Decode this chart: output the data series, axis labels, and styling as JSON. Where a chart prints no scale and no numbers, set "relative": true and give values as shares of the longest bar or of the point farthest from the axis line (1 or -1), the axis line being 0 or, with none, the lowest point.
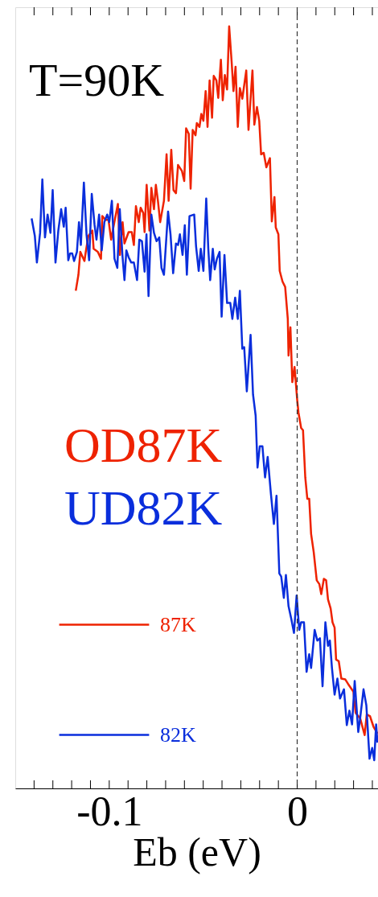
{
  "chart_data": {
    "type": "line",
    "relative": true,
    "xlabel": "Eb (eV)",
    "annotations": [
      "T=90K",
      "OD87K",
      "UD82K"
    ],
    "xlim": [
      -0.15,
      0.043
    ],
    "xticks": [
      {
        "value": -0.14,
        "label": null
      },
      {
        "value": -0.13,
        "label": null
      },
      {
        "value": -0.12,
        "label": null
      },
      {
        "value": -0.11,
        "label": null
      },
      {
        "value": -0.1,
        "label": "-0.1"
      },
      {
        "value": -0.09,
        "label": null
      },
      {
        "value": -0.08,
        "label": null
      },
      {
        "value": -0.07,
        "label": null
      },
      {
        "value": -0.06,
        "label": null
      },
      {
        "value": -0.05,
        "label": null
      },
      {
        "value": -0.04,
        "label": null
      },
      {
        "value": -0.03,
        "label": null
      },
      {
        "value": -0.02,
        "label": null
      },
      {
        "value": -0.01,
        "label": null
      },
      0,
      {
        "value": 0.01,
        "label": null
      },
      {
        "value": 0.02,
        "label": null
      },
      {
        "value": 0.03,
        "label": null
      },
      {
        "value": 0.04,
        "label": null
      }
    ],
    "grid": false,
    "legend": "bottom left",
    "marker": "none",
    "line_style": "solid",
    "tick_labels": "x",
    "ref_lines": [
      {
        "axis": "x",
        "value": 0,
        "label": null,
        "color": "#333333",
        "line_style": "dashed"
      }
    ],
    "series": [
      {
        "name": "87K",
        "color": "#ee2200",
        "x": [
          -0.1178,
          -0.1164,
          -0.1154,
          -0.1132,
          -0.1125,
          -0.1111,
          -0.109,
          -0.1083,
          -0.1061,
          -0.1044,
          -0.1037,
          -0.1019,
          -0.1004,
          -0.099,
          -0.0976,
          -0.0954,
          -0.0943,
          -0.0929,
          -0.0919,
          -0.0897,
          -0.088,
          -0.0869,
          -0.0858,
          -0.0843,
          -0.0833,
          -0.0819,
          -0.0812,
          -0.0801,
          -0.0786,
          -0.0776,
          -0.0762,
          -0.0752,
          -0.0741,
          -0.0729,
          -0.0709,
          -0.0695,
          -0.0684,
          -0.067,
          -0.0658,
          -0.0645,
          -0.0634,
          -0.0613,
          -0.0601,
          -0.0591,
          -0.0577,
          -0.0567,
          -0.0556,
          -0.0541,
          -0.0534,
          -0.052,
          -0.051,
          -0.0499,
          -0.0487,
          -0.0477,
          -0.0466,
          -0.0453,
          -0.0444,
          -0.043,
          -0.042,
          -0.0406,
          -0.0396,
          -0.0385,
          -0.0373,
          -0.0362,
          -0.0349,
          -0.0339,
          -0.0328,
          -0.0316,
          -0.0305,
          -0.0292,
          -0.0271,
          -0.0259,
          -0.0238,
          -0.0228,
          -0.0214,
          -0.0202,
          -0.0192,
          -0.0178,
          -0.0164,
          -0.0145,
          -0.0135,
          -0.0121,
          -0.0114,
          -0.01,
          -0.0093,
          -0.0078,
          -0.0064,
          -0.005,
          -0.0046,
          -0.0036,
          -0.0026,
          -0.0014,
          0.0,
          0.0007,
          0.0021,
          0.0031,
          0.0043,
          0.0054,
          0.0064,
          0.0074,
          0.0088,
          0.0104,
          0.0118,
          0.0128,
          0.0142,
          0.0154,
          0.0164,
          0.0178,
          0.0188,
          0.0199,
          0.0207,
          0.0221,
          0.0235,
          0.0256,
          0.0271,
          0.0299,
          0.0311,
          0.0335,
          0.0359,
          0.037,
          0.0387,
          0.0406,
          0.0427
        ],
        "values": [
          0.653,
          0.674,
          0.704,
          0.692,
          0.704,
          0.725,
          0.732,
          0.708,
          0.704,
          0.695,
          0.751,
          0.746,
          0.746,
          0.72,
          0.739,
          0.767,
          0.7,
          0.743,
          0.715,
          0.73,
          0.73,
          0.713,
          0.764,
          0.743,
          0.762,
          0.755,
          0.73,
          0.792,
          0.732,
          0.788,
          0.76,
          0.792,
          0.771,
          0.743,
          0.771,
          0.832,
          0.771,
          0.838,
          0.785,
          0.781,
          0.818,
          0.81,
          0.797,
          0.866,
          0.859,
          0.787,
          0.864,
          0.857,
          0.873,
          0.868,
          0.885,
          0.876,
          0.915,
          0.868,
          0.929,
          0.88,
          0.935,
          0.929,
          0.906,
          0.956,
          0.903,
          0.936,
          0.917,
          1.0,
          0.954,
          0.915,
          0.947,
          0.868,
          0.919,
          0.905,
          0.942,
          0.864,
          0.942,
          0.871,
          0.894,
          0.876,
          0.832,
          0.834,
          0.815,
          0.827,
          0.744,
          0.776,
          0.736,
          0.727,
          0.679,
          0.665,
          0.658,
          0.616,
          0.568,
          0.605,
          0.533,
          0.553,
          0.51,
          0.493,
          0.473,
          0.47,
          0.408,
          0.38,
          0.38,
          0.334,
          0.31,
          0.273,
          0.268,
          0.255,
          0.275,
          0.273,
          0.248,
          0.236,
          0.218,
          0.211,
          0.169,
          0.167,
          0.144,
          0.143,
          0.137,
          0.127,
          0.099,
          0.092,
          0.07,
          0.097,
          0.095,
          0.081,
          0.072
        ]
      },
      {
        "name": "82K",
        "color": "#0a2edc",
        "x": [
          -0.1413,
          -0.1396,
          -0.1385,
          -0.1368,
          -0.1356,
          -0.1342,
          -0.1328,
          -0.1313,
          -0.1301,
          -0.1286,
          -0.1271,
          -0.1256,
          -0.1242,
          -0.1232,
          -0.1218,
          -0.1208,
          -0.1197,
          -0.1187,
          -0.1172,
          -0.1161,
          -0.1151,
          -0.1135,
          -0.1121,
          -0.1107,
          -0.1093,
          -0.1078,
          -0.1068,
          -0.1054,
          -0.104,
          -0.1026,
          -0.1011,
          -0.1,
          -0.0986,
          -0.0972,
          -0.0957,
          -0.0944,
          -0.093,
          -0.0919,
          -0.0909,
          -0.0897,
          -0.0883,
          -0.0869,
          -0.0852,
          -0.084,
          -0.0826,
          -0.0812,
          -0.0802,
          -0.0791,
          -0.0776,
          -0.0762,
          -0.0748,
          -0.0734,
          -0.0722,
          -0.0709,
          -0.0687,
          -0.0674,
          -0.066,
          -0.0645,
          -0.0634,
          -0.0624,
          -0.061,
          -0.0598,
          -0.0587,
          -0.0573,
          -0.0548,
          -0.0538,
          -0.0524,
          -0.0513,
          -0.0499,
          -0.0484,
          -0.0473,
          -0.0463,
          -0.0449,
          -0.0439,
          -0.0427,
          -0.0413,
          -0.0402,
          -0.0387,
          -0.0373,
          -0.0356,
          -0.0345,
          -0.033,
          -0.0316,
          -0.0305,
          -0.0292,
          -0.0282,
          -0.0268,
          -0.0248,
          -0.0235,
          -0.0221,
          -0.0211,
          -0.0199,
          -0.0185,
          -0.0171,
          -0.0157,
          -0.014,
          -0.0124,
          -0.011,
          -0.0095,
          -0.0085,
          -0.0071,
          -0.006,
          -0.0046,
          -0.0031,
          -0.0017,
          -0.0003,
          0.0011,
          0.0021,
          0.0036,
          0.005,
          0.0064,
          0.0074,
          0.0093,
          0.0107,
          0.0121,
          0.0135,
          0.015,
          0.0164,
          0.0174,
          0.0185,
          0.0199,
          0.0214,
          0.0228,
          0.0249,
          0.0264,
          0.0278,
          0.0292,
          0.0306,
          0.0325,
          0.0335,
          0.0353,
          0.0368,
          0.0385,
          0.0399,
          0.041,
          0.042,
          0.0427
        ],
        "values": [
          0.748,
          0.725,
          0.69,
          0.729,
          0.799,
          0.723,
          0.753,
          0.729,
          0.785,
          0.69,
          0.732,
          0.76,
          0.737,
          0.762,
          0.693,
          0.702,
          0.702,
          0.692,
          0.704,
          0.743,
          0.713,
          0.795,
          0.727,
          0.693,
          0.78,
          0.739,
          0.72,
          0.753,
          0.706,
          0.743,
          0.753,
          0.743,
          0.771,
          0.695,
          0.683,
          0.76,
          0.7,
          0.667,
          0.706,
          0.697,
          0.69,
          0.69,
          0.667,
          0.72,
          0.718,
          0.678,
          0.727,
          0.646,
          0.753,
          0.729,
          0.718,
          0.723,
          0.683,
          0.674,
          0.757,
          0.727,
          0.676,
          0.715,
          0.713,
          0.727,
          0.7,
          0.739,
          0.674,
          0.751,
          0.753,
          0.711,
          0.679,
          0.708,
          0.679,
          0.774,
          0.708,
          0.667,
          0.708,
          0.681,
          0.695,
          0.704,
          0.619,
          0.7,
          0.637,
          0.637,
          0.616,
          0.644,
          0.616,
          0.653,
          0.577,
          0.579,
          0.521,
          0.595,
          0.517,
          0.489,
          0.421,
          0.449,
          0.449,
          0.408,
          0.435,
          0.387,
          0.347,
          0.384,
          0.282,
          0.278,
          0.25,
          0.28,
          0.239,
          0.222,
          0.204,
          0.253,
          0.208,
          0.218,
          0.218,
          0.153,
          0.176,
          0.158,
          0.208,
          0.194,
          0.197,
          0.134,
          0.218,
          0.187,
          0.194,
          0.158,
          0.123,
          0.144,
          0.118,
          0.13,
          0.083,
          0.102,
          0.084,
          0.141,
          0.074,
          0.092,
          0.13,
          0.109,
          0.039,
          0.053,
          0.037,
          0.084,
          0.06
        ]
      }
    ]
  }
}
